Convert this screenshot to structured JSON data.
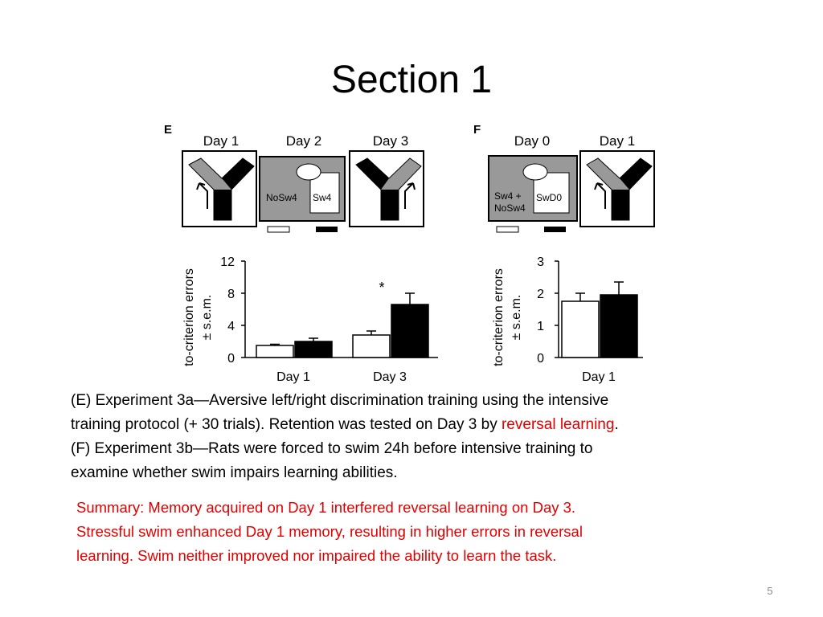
{
  "title": "Section 1",
  "figure": {
    "panel_e": {
      "label": "E",
      "days": [
        "Day 1",
        "Day 2",
        "Day 3"
      ],
      "box_labels": [
        "NoSw4",
        "Sw4"
      ]
    },
    "panel_f": {
      "label": "F",
      "days": [
        "Day 0",
        "Day 1"
      ],
      "box_labels": [
        "Sw4 +",
        "NoSw4",
        "SwD0"
      ]
    }
  },
  "chart_data": [
    {
      "type": "bar",
      "ylabel": [
        "to-criterion errors",
        "± s.e.m."
      ],
      "categories": [
        "Day 1",
        "Day 3"
      ],
      "series": [
        {
          "color": "#ffffff",
          "values": [
            1.5,
            2.8
          ],
          "errors": [
            0.15,
            0.5
          ]
        },
        {
          "color": "#000000",
          "values": [
            2.0,
            6.6
          ],
          "errors": [
            0.4,
            1.4
          ]
        }
      ],
      "ylim": [
        0,
        12
      ],
      "yticks": [
        0,
        4,
        8,
        12
      ],
      "annotation": "*"
    },
    {
      "type": "bar",
      "ylabel": [
        "to-criterion errors",
        "± s.e.m."
      ],
      "categories": [
        "Day 1"
      ],
      "series": [
        {
          "color": "#ffffff",
          "values": [
            1.75
          ],
          "errors": [
            0.25
          ]
        },
        {
          "color": "#000000",
          "values": [
            1.95
          ],
          "errors": [
            0.4
          ]
        }
      ],
      "ylim": [
        0,
        3
      ],
      "yticks": [
        0,
        1,
        2,
        3
      ]
    }
  ],
  "caption": [
    [
      "(E) Experiment 3a—Aversive left/right discrimination training using the intensive"
    ],
    [
      "training protocol (+ 30 trials). Retention was tested on Day 3 by ",
      "reversal learning",
      "."
    ],
    [
      "(F) Experiment 3b—Rats were forced to swim 24h before intensive training to"
    ],
    [
      "examine whether swim impairs learning abilities."
    ]
  ],
  "summary": [
    "Summary: Memory acquired on Day 1 interfered reversal learning on Day 3.",
    "Stressful swim enhanced Day 1 memory, resulting in higher errors in reversal",
    "learning. Swim neither improved nor impaired the ability to learn the task."
  ],
  "page_number": "5"
}
